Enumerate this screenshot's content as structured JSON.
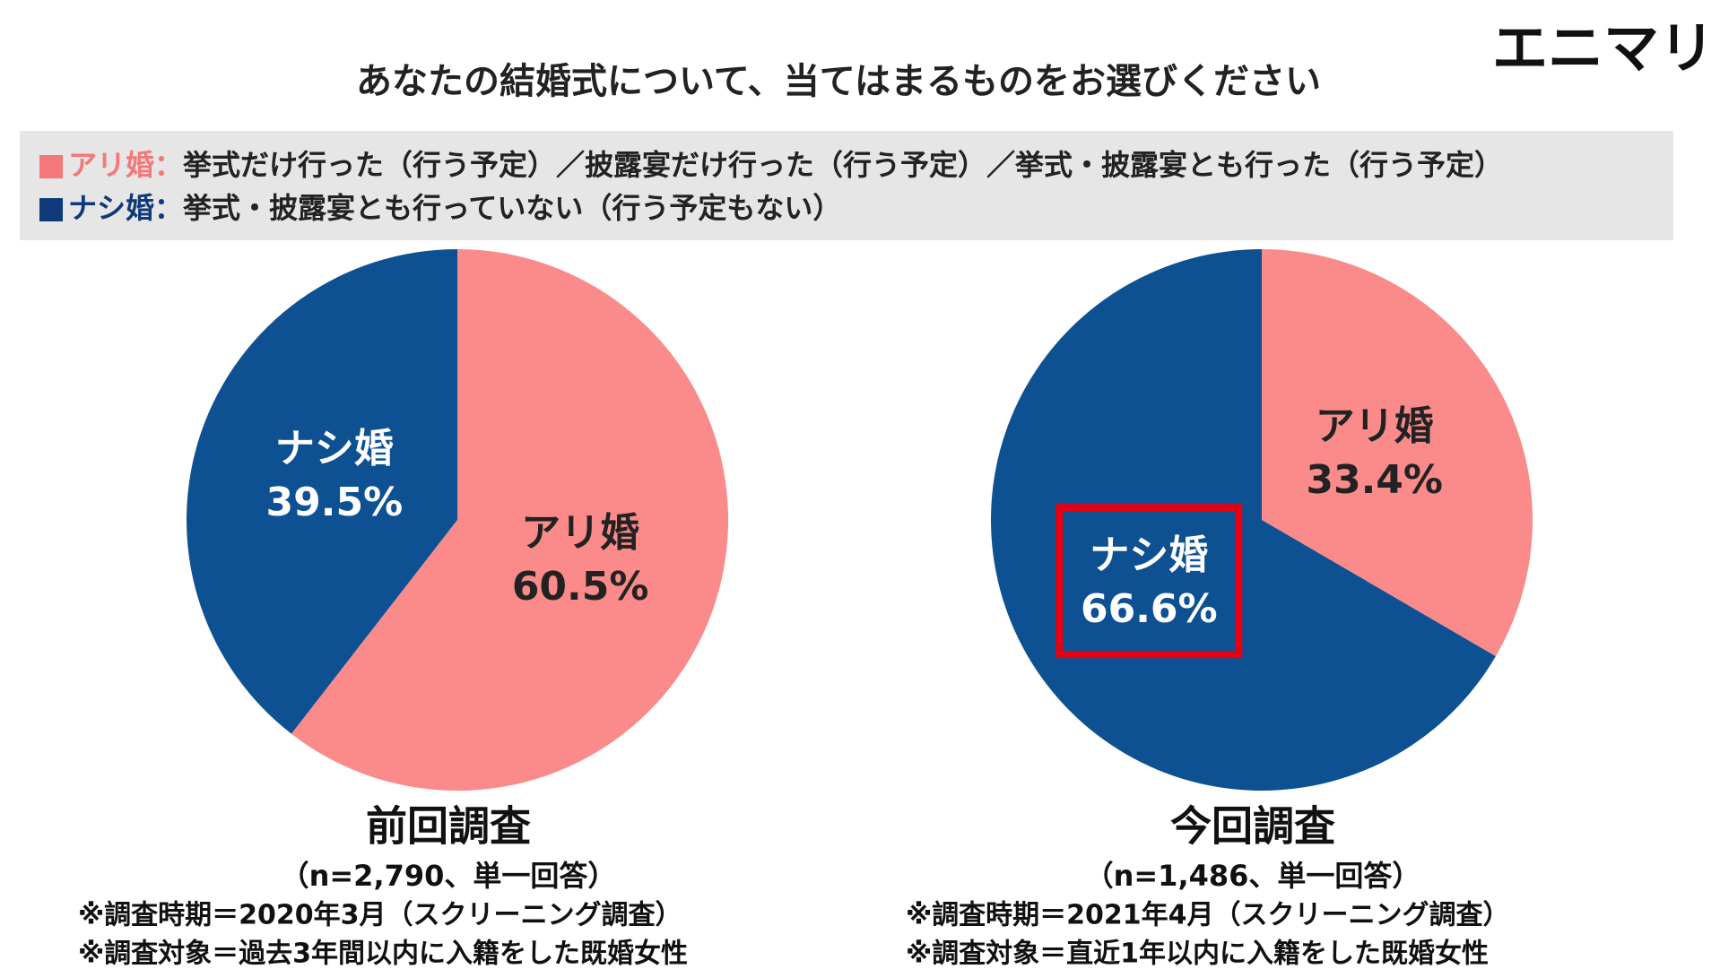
{
  "header": {
    "title": "あなたの結婚式について、当てはまるものをお選びください",
    "logo": "エニマリ"
  },
  "legend": [
    {
      "label": "アリ婚：",
      "text": "挙式だけ行った（行う予定）／披露宴だけ行った（行う予定）／挙式・披露宴とも行った（行う予定）",
      "color": "#f4777a"
    },
    {
      "label": "ナシ婚：",
      "text": "挙式・披露宴とも行っていない（行う予定もない）",
      "color": "#0f3a7a"
    }
  ],
  "chart_data": [
    {
      "type": "pie",
      "title": "前回調査",
      "subtitle": "（n=2,790、単一回答）",
      "notes": [
        "※調査時期＝2020年3月（スクリーニング調査）",
        "※調査対象＝過去3年間以内に入籍をした既婚女性"
      ],
      "categories": [
        "アリ婚",
        "ナシ婚"
      ],
      "values": [
        60.5,
        39.5
      ],
      "value_labels": [
        "60.5%",
        "39.5%"
      ],
      "colors": [
        "#fb8a8a",
        "#0e5193"
      ]
    },
    {
      "type": "pie",
      "title": "今回調査",
      "subtitle": "（n=1,486、単一回答）",
      "notes": [
        "※調査時期＝2021年4月（スクリーニング調査）",
        "※調査対象＝直近1年以内に入籍をした既婚女性"
      ],
      "categories": [
        "アリ婚",
        "ナシ婚"
      ],
      "values": [
        33.4,
        66.6
      ],
      "value_labels": [
        "33.4%",
        "66.6%"
      ],
      "colors": [
        "#fb8a8a",
        "#0e5193"
      ]
    }
  ]
}
